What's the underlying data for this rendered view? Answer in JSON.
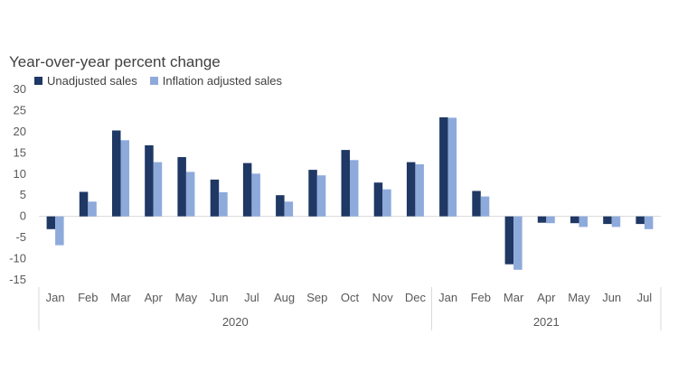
{
  "chart_data": {
    "type": "bar",
    "ylabel": "Year-over-year percent change",
    "categories": [
      "Jan",
      "Feb",
      "Mar",
      "Apr",
      "May",
      "Jun",
      "Jul",
      "Aug",
      "Sep",
      "Oct",
      "Nov",
      "Dec",
      "Jan",
      "Feb",
      "Mar",
      "Apr",
      "May",
      "Jun",
      "Jul"
    ],
    "groups": [
      {
        "label": "2020",
        "count": 12
      },
      {
        "label": "2021",
        "count": 7
      }
    ],
    "series": [
      {
        "name": "Unadjusted sales",
        "color": "#1f3864",
        "values": [
          -3,
          5.8,
          20.3,
          16.8,
          14,
          8.7,
          12.6,
          5,
          11,
          15.7,
          8,
          12.8,
          23.4,
          6,
          -11.3,
          -1.5,
          -1.6,
          -1.8,
          -1.8
        ]
      },
      {
        "name": "Inflation adjusted sales",
        "color": "#8eaadb",
        "values": [
          -6.8,
          3.5,
          18,
          12.8,
          10.5,
          5.7,
          10.1,
          3.5,
          9.7,
          13.3,
          6.4,
          12.3,
          23.3,
          4.7,
          -12.6,
          -1.6,
          -2.5,
          -2.5,
          -3
        ]
      }
    ],
    "ylim": [
      -15,
      30
    ],
    "yticks": [
      -15,
      -10,
      -5,
      0,
      5,
      10,
      15,
      20,
      25,
      30
    ],
    "grid": false,
    "legend_position": "top-left"
  }
}
